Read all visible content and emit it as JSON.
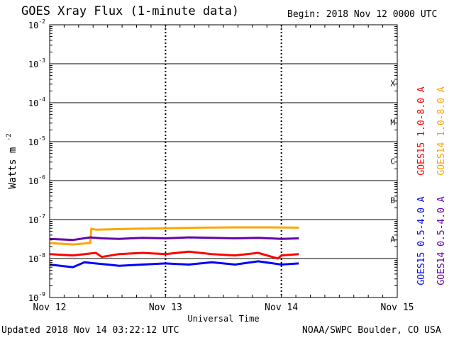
{
  "header": {
    "title": "GOES Xray Flux (1-minute data)",
    "begin_label": "Begin:  2018 Nov 12 0000 UTC"
  },
  "footer": {
    "updated": "Updated 2018 Nov 14 03:22:12 UTC",
    "credit": "NOAA/SWPC Boulder, CO USA"
  },
  "colors": {
    "goes15_long": "#ff0000",
    "goes14_long": "#ffa500",
    "goes15_short": "#0000ff",
    "goes14_short": "#6600aa",
    "grid": "#000000"
  },
  "chart_data": {
    "type": "line",
    "title": "GOES Xray Flux (1-minute data)",
    "xlabel": "Universal Time",
    "ylabel": "Watts m",
    "ylabel_sup": "-2",
    "yscale": "log",
    "ylim": [
      1e-09,
      0.01
    ],
    "xlim": [
      0,
      3
    ],
    "x_units": "days since 2018 Nov 12 0000 UTC",
    "x_ticks": [
      {
        "x": 0,
        "label": "Nov 12"
      },
      {
        "x": 1,
        "label": "Nov 13"
      },
      {
        "x": 2,
        "label": "Nov 14"
      },
      {
        "x": 3,
        "label": "Nov 15"
      }
    ],
    "y_ticks": [
      {
        "exp": -9,
        "label": "10",
        "sup": "-9"
      },
      {
        "exp": -8,
        "label": "10",
        "sup": "-8"
      },
      {
        "exp": -7,
        "label": "10",
        "sup": "-7"
      },
      {
        "exp": -6,
        "label": "10",
        "sup": "-6"
      },
      {
        "exp": -5,
        "label": "10",
        "sup": "-5"
      },
      {
        "exp": -4,
        "label": "10",
        "sup": "-4"
      },
      {
        "exp": -3,
        "label": "10",
        "sup": "-3"
      },
      {
        "exp": -2,
        "label": "10",
        "sup": "-2"
      }
    ],
    "flare_classes": [
      {
        "label": "A",
        "exp": -7.5
      },
      {
        "label": "B",
        "exp": -6.5
      },
      {
        "label": "C",
        "exp": -5.5
      },
      {
        "label": "M",
        "exp": -4.5
      },
      {
        "label": "X",
        "exp": -3.5
      }
    ],
    "grid": true,
    "legend_position": "right, rotated vertical",
    "series": [
      {
        "name": "GOES15 1.0-8.0 A",
        "color": "#ff0000",
        "x": [
          0,
          0.2,
          0.4,
          0.45,
          0.6,
          0.8,
          1.0,
          1.2,
          1.4,
          1.6,
          1.8,
          1.97,
          2.0,
          2.15
        ],
        "y": [
          1.3e-08,
          1.2e-08,
          1.4e-08,
          1.1e-08,
          1.3e-08,
          1.4e-08,
          1.3e-08,
          1.5e-08,
          1.3e-08,
          1.2e-08,
          1.4e-08,
          1e-08,
          1.2e-08,
          1.3e-08
        ]
      },
      {
        "name": "GOES14 1.0-8.0 A",
        "color": "#ffa500",
        "x": [
          0,
          0.2,
          0.35,
          0.36,
          0.4,
          0.7,
          1.0,
          1.3,
          1.6,
          1.9,
          2.15
        ],
        "y": [
          2.5e-08,
          2.3e-08,
          2.5e-08,
          5.8e-08,
          5.5e-08,
          5.8e-08,
          6e-08,
          6.2e-08,
          6.3e-08,
          6.3e-08,
          6.2e-08
        ]
      },
      {
        "name": "GOES15 0.5-4.0 A",
        "color": "#0000ff",
        "x": [
          0,
          0.2,
          0.3,
          0.5,
          0.6,
          0.8,
          1.0,
          1.2,
          1.4,
          1.6,
          1.8,
          2.0,
          2.15
        ],
        "y": [
          7e-09,
          6e-09,
          8e-09,
          7e-09,
          6.5e-09,
          7e-09,
          7.5e-09,
          7e-09,
          8e-09,
          7e-09,
          8.5e-09,
          7e-09,
          7.5e-09
        ]
      },
      {
        "name": "GOES14 0.5-4.0 A",
        "color": "#6600aa",
        "x": [
          0,
          0.2,
          0.35,
          0.45,
          0.6,
          0.8,
          1.0,
          1.2,
          1.4,
          1.6,
          1.8,
          2.0,
          2.15
        ],
        "y": [
          3.2e-08,
          3e-08,
          3.5e-08,
          3.3e-08,
          3.2e-08,
          3.4e-08,
          3.3e-08,
          3.5e-08,
          3.4e-08,
          3.3e-08,
          3.4e-08,
          3.2e-08,
          3.3e-08
        ]
      }
    ]
  }
}
